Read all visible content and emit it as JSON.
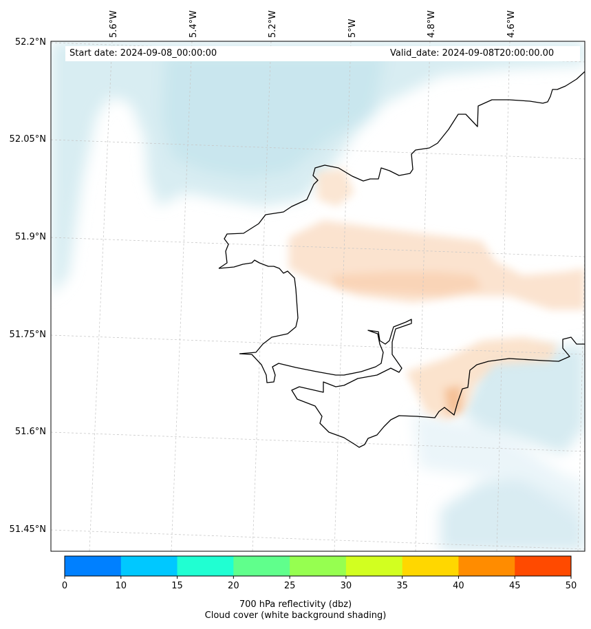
{
  "header": {
    "start_date": "Start date: 2024-09-08_00:00:00",
    "valid_date": "Valid_date: 2024-09-08T20:00:00.00"
  },
  "axes": {
    "longitude_labels": [
      "5.6°W",
      "5.4°W",
      "5.2°W",
      "5°W",
      "4.8°W",
      "4.6°W"
    ],
    "latitude_labels": [
      "52.2°N",
      "52.05°N",
      "51.9°N",
      "51.75°N",
      "51.6°N",
      "51.45°N"
    ]
  },
  "colorbar": {
    "label": "700 hPa reflectivity (dbz)",
    "sublabel": "Cloud cover (white background shading)",
    "ticks": [
      "0",
      "10",
      "15",
      "20",
      "25",
      "30",
      "35",
      "40",
      "45",
      "50"
    ],
    "colors": [
      "#0080ff",
      "#00c8ff",
      "#20ffd2",
      "#60ff8c",
      "#96ff50",
      "#d2ff20",
      "#ffd700",
      "#ff8c00",
      "#ff4a00"
    ]
  }
}
